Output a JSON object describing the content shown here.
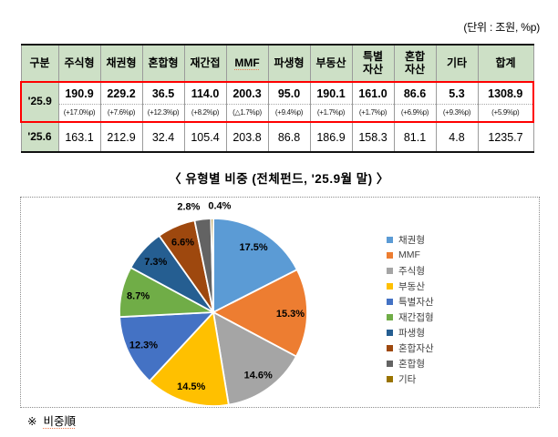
{
  "unit_note": "(단위 : 조원, %p)",
  "colors": {
    "header_green": "#CDE0C6",
    "highlight_red": "#FF0000",
    "chart_border": "#8D8D8D"
  },
  "table": {
    "corner": "구분",
    "columns": [
      "주식형",
      "채권형",
      "혼합형",
      "재간접",
      "MMF",
      "파생형",
      "부동산",
      "특별\n자산",
      "혼합\n자산",
      "기타",
      "합계"
    ],
    "row_259": {
      "label": "'25.9",
      "values": [
        "190.9",
        "229.2",
        "36.5",
        "114.0",
        "200.3",
        "95.0",
        "190.1",
        "161.0",
        "86.6",
        "5.3",
        "1308.9"
      ],
      "changes": [
        "(+17.0%p)",
        "(+7.6%p)",
        "(+12.3%p)",
        "(+8.2%p)",
        "(△1.7%p)",
        "(+9.4%p)",
        "(+1.7%p)",
        "(+1.7%p)",
        "(+6.9%p)",
        "(+9.3%p)",
        "(+5.9%p)"
      ]
    },
    "row_256": {
      "label": "'25.6",
      "values": [
        "163.1",
        "212.9",
        "32.4",
        "105.4",
        "203.8",
        "86.8",
        "186.9",
        "158.3",
        "81.1",
        "4.8",
        "1235.7"
      ]
    }
  },
  "chart_title": "〈 유형별 비중 (전체펀드, '25.9월 말) 〉",
  "chart_data": {
    "type": "pie",
    "title": "유형별 비중 (전체펀드, '25.9월 말)",
    "legend_position": "right",
    "start_angle_deg": 0,
    "direction": "clockwise",
    "label_format": "percent",
    "slices": [
      {
        "label": "채권형",
        "value": 17.5,
        "color": "#5B9BD5"
      },
      {
        "label": "MMF",
        "value": 15.3,
        "color": "#ED7D31"
      },
      {
        "label": "주식형",
        "value": 14.6,
        "color": "#A5A5A5"
      },
      {
        "label": "부동산",
        "value": 14.5,
        "color": "#FFC000"
      },
      {
        "label": "특별자산",
        "value": 12.3,
        "color": "#4472C4"
      },
      {
        "label": "재간접형",
        "value": 8.7,
        "color": "#70AD47"
      },
      {
        "label": "파생형",
        "value": 7.3,
        "color": "#255E91"
      },
      {
        "label": "혼합자산",
        "value": 6.6,
        "color": "#9E480E"
      },
      {
        "label": "혼합형",
        "value": 2.8,
        "color": "#636363"
      },
      {
        "label": "기타",
        "value": 0.4,
        "color": "#997300"
      }
    ]
  },
  "footnote": {
    "marker": "※",
    "text": "비중順"
  }
}
